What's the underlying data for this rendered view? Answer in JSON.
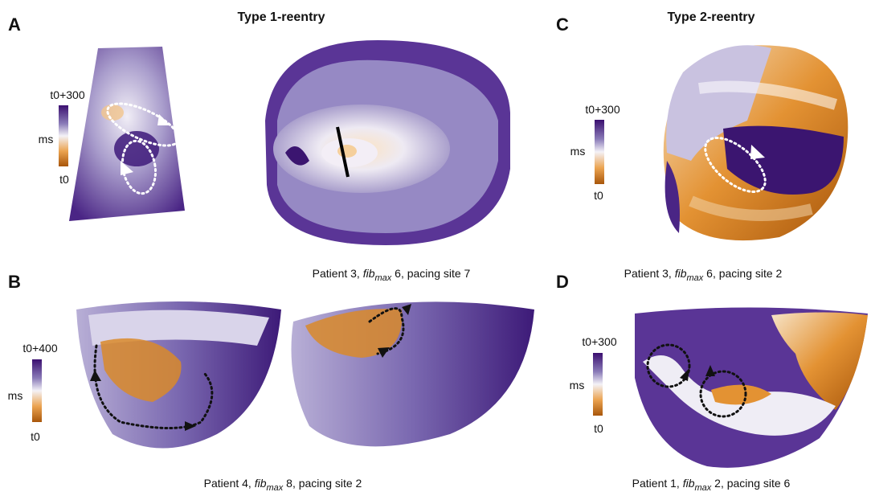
{
  "panels": [
    {
      "label": "A",
      "title": "Type 1-reentry",
      "colorbar": {
        "max": "t0+300",
        "unit": "ms",
        "min": "t0"
      },
      "caption": {
        "lead": "Patient 3, ",
        "italic": "fib",
        "sub": "max",
        "tail": " 6, pacing site 7"
      }
    },
    {
      "label": "B",
      "colorbar": {
        "max": "t0+400",
        "unit": "ms",
        "min": "t0"
      },
      "caption": {
        "lead": "Patient 4, ",
        "italic": "fib",
        "sub": "max",
        "tail": " 8, pacing site 2"
      }
    },
    {
      "label": "C",
      "title": "Type 2-reentry",
      "colorbar": {
        "max": "t0+300",
        "unit": "ms",
        "min": "t0"
      },
      "caption": {
        "lead": "Patient 3, ",
        "italic": "fib",
        "sub": "max",
        "tail": " 6, pacing site 2"
      }
    },
    {
      "label": "D",
      "colorbar": {
        "max": "t0+300",
        "unit": "ms",
        "min": "t0"
      },
      "caption": {
        "lead": "Patient 1, ",
        "italic": "fib",
        "sub": "max",
        "tail": " 2, pacing site 6"
      }
    }
  ]
}
